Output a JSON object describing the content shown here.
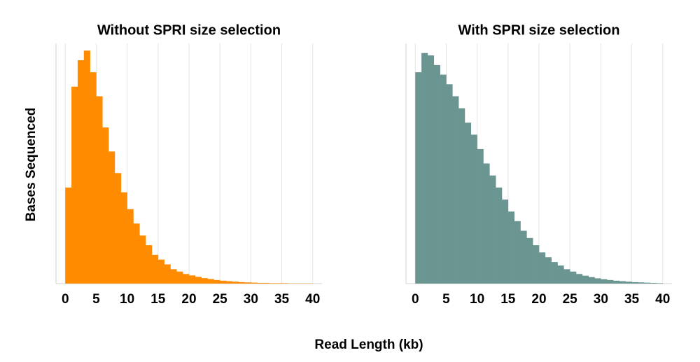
{
  "xlabel": "Read Length (kb)",
  "ylabel": "Bases Sequenced",
  "chart_data": [
    {
      "type": "histogram",
      "title": "Without SPRI size selection",
      "color": "#ff8c00",
      "grid": true,
      "bins": [
        0,
        1,
        2,
        3,
        4,
        5,
        6,
        7,
        8,
        9,
        10,
        11,
        12,
        13,
        14,
        15,
        16,
        17,
        18,
        19,
        20,
        21,
        22,
        23,
        24,
        25,
        26,
        27,
        28,
        29,
        30,
        31,
        32,
        33,
        34,
        35,
        36,
        37,
        38,
        39,
        40
      ],
      "values": [
        40,
        82,
        93,
        97,
        88,
        78,
        65,
        55,
        46,
        38,
        31,
        25,
        20,
        16,
        12,
        10,
        8,
        6,
        5,
        4,
        3.4,
        2.8,
        2.3,
        1.9,
        1.5,
        1.2,
        1,
        0.8,
        0.6,
        0.5,
        0.4,
        0.3,
        0.3,
        0.2,
        0.2,
        0.2,
        0.1,
        0.1,
        0.1,
        0.1
      ],
      "xlim": [
        -1.5,
        41.5
      ],
      "xticks": [
        0,
        5,
        10,
        15,
        20,
        25,
        30,
        35,
        40
      ],
      "ylim": [
        0,
        100
      ]
    },
    {
      "type": "histogram",
      "title": "With SPRI size selection",
      "color": "#6a9591",
      "grid": true,
      "bins": [
        0,
        1,
        2,
        3,
        4,
        5,
        6,
        7,
        8,
        9,
        10,
        11,
        12,
        13,
        14,
        15,
        16,
        17,
        18,
        19,
        20,
        21,
        22,
        23,
        24,
        25,
        26,
        27,
        28,
        29,
        30,
        31,
        32,
        33,
        34,
        35,
        36,
        37,
        38,
        39,
        40
      ],
      "values": [
        88,
        96,
        95,
        91,
        87,
        83,
        78,
        73,
        67,
        62,
        56,
        50,
        45,
        40,
        35,
        30,
        26,
        22,
        19,
        16,
        13,
        11,
        9,
        7.5,
        6,
        5,
        4,
        3.3,
        2.7,
        2.2,
        1.8,
        1.5,
        1.2,
        1,
        0.8,
        0.6,
        0.5,
        0.4,
        0.3,
        0.2
      ],
      "xlim": [
        -1.5,
        41.5
      ],
      "xticks": [
        0,
        5,
        10,
        15,
        20,
        25,
        30,
        35,
        40
      ],
      "ylim": [
        0,
        100
      ]
    }
  ]
}
